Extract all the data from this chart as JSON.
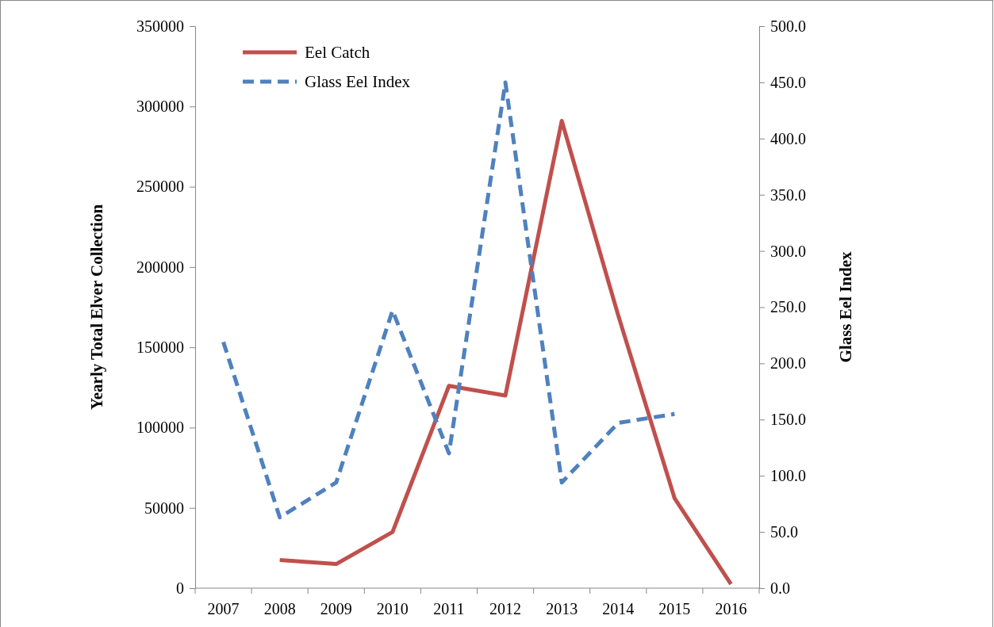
{
  "chart_data": {
    "type": "line",
    "categories": [
      "2007",
      "2008",
      "2009",
      "2010",
      "2011",
      "2012",
      "2013",
      "2014",
      "2015",
      "2016"
    ],
    "ylabel": "Yearly Total Elver Collection",
    "y2label": "Glass Eel Index",
    "ylim": [
      0,
      350000
    ],
    "yticks": [
      0,
      50000,
      100000,
      150000,
      200000,
      250000,
      300000,
      350000
    ],
    "y2lim": [
      0,
      500
    ],
    "y2ticks": [
      {
        "value": 0,
        "label": "0.0"
      },
      {
        "value": 50,
        "label": "50.0"
      },
      {
        "value": 100,
        "label": "100.0"
      },
      {
        "value": 150,
        "label": "150.0"
      },
      {
        "value": 200,
        "label": "200.0"
      },
      {
        "value": 250,
        "label": "250.0"
      },
      {
        "value": 300,
        "label": "300.0"
      },
      {
        "value": 350,
        "label": "350.0"
      },
      {
        "value": 400,
        "label": "400.0"
      },
      {
        "value": 450,
        "label": "450.0"
      },
      {
        "value": 500,
        "label": "500.0"
      }
    ],
    "legend": "top left",
    "grid": false,
    "series": [
      {
        "name": "Eel Catch",
        "color": "#c0504d",
        "line_style": "solid",
        "values": [
          null,
          17500,
          15000,
          35000,
          126000,
          120000,
          291000,
          170000,
          56000,
          2500
        ]
      },
      {
        "name": "Glass Eel Index",
        "color": "#4f81bd",
        "line_style": "dashed",
        "axis": "y2",
        "values": [
          219,
          63,
          94,
          247,
          120,
          450,
          94,
          147,
          155,
          null
        ]
      }
    ]
  }
}
